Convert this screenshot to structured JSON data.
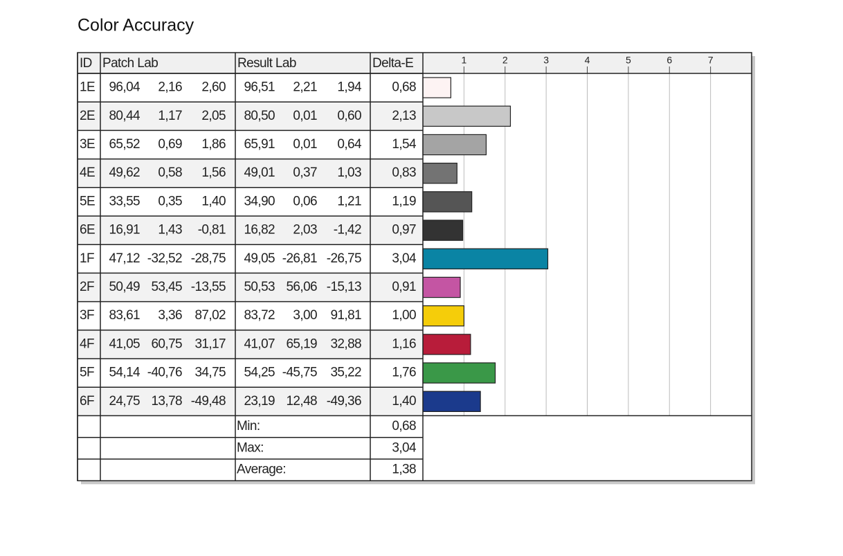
{
  "title": "Color Accuracy",
  "table": {
    "headers": [
      "ID",
      "Patch Lab",
      "Result Lab",
      "Delta-E"
    ],
    "rows": [
      {
        "id": "1E",
        "patch": [
          "96,04",
          "2,16",
          "2,60"
        ],
        "result": [
          "96,51",
          "2,21",
          "1,94"
        ]
      },
      {
        "id": "2E",
        "patch": [
          "80,44",
          "1,17",
          "2,05"
        ],
        "result": [
          "80,50",
          "0,01",
          "0,60"
        ]
      },
      {
        "id": "3E",
        "patch": [
          "65,52",
          "0,69",
          "1,86"
        ],
        "result": [
          "65,91",
          "0,01",
          "0,64"
        ]
      },
      {
        "id": "4E",
        "patch": [
          "49,62",
          "0,58",
          "1,56"
        ],
        "result": [
          "49,01",
          "0,37",
          "1,03"
        ]
      },
      {
        "id": "5E",
        "patch": [
          "33,55",
          "0,35",
          "1,40"
        ],
        "result": [
          "34,90",
          "0,06",
          "1,21"
        ]
      },
      {
        "id": "6E",
        "patch": [
          "16,91",
          "1,43",
          "-0,81"
        ],
        "result": [
          "16,82",
          "2,03",
          "-1,42"
        ]
      },
      {
        "id": "1F",
        "patch": [
          "47,12",
          "-32,52",
          "-28,75"
        ],
        "result": [
          "49,05",
          "-26,81",
          "-26,75"
        ]
      },
      {
        "id": "2F",
        "patch": [
          "50,49",
          "53,45",
          "-13,55"
        ],
        "result": [
          "50,53",
          "56,06",
          "-15,13"
        ]
      },
      {
        "id": "3F",
        "patch": [
          "83,61",
          "3,36",
          "87,02"
        ],
        "result": [
          "83,72",
          "3,00",
          "91,81"
        ]
      },
      {
        "id": "4F",
        "patch": [
          "41,05",
          "60,75",
          "31,17"
        ],
        "result": [
          "41,07",
          "65,19",
          "32,88"
        ]
      },
      {
        "id": "5F",
        "patch": [
          "54,14",
          "-40,76",
          "34,75"
        ],
        "result": [
          "54,25",
          "-45,75",
          "35,22"
        ]
      },
      {
        "id": "6F",
        "patch": [
          "24,75",
          "13,78",
          "-49,48"
        ],
        "result": [
          "23,19",
          "12,48",
          "-49,36"
        ]
      }
    ],
    "summary": [
      {
        "label": "Min:",
        "value": "0,68"
      },
      {
        "label": "Max:",
        "value": "3,04"
      },
      {
        "label": "Average:",
        "value": "1,38"
      }
    ]
  },
  "chart_data": {
    "type": "bar",
    "orientation": "horizontal",
    "values": [
      0.68,
      2.13,
      1.54,
      0.83,
      1.19,
      0.97,
      3.04,
      0.91,
      1.0,
      1.16,
      1.76,
      1.4
    ],
    "value_labels": [
      "0,68",
      "2,13",
      "1,54",
      "0,83",
      "1,19",
      "0,97",
      "3,04",
      "0,91",
      "1,00",
      "1,16",
      "1,76",
      "1,40"
    ],
    "colors": [
      "#fdf3f3",
      "#c8c8c8",
      "#a4a4a4",
      "#737373",
      "#555555",
      "#333333",
      "#0a84a4",
      "#c455a3",
      "#f5cd0a",
      "#b81c3a",
      "#3a9848",
      "#1b3a8c"
    ],
    "xlim": [
      0,
      8
    ],
    "xticks": [
      1,
      2,
      3,
      4,
      5,
      6,
      7
    ],
    "grid": true
  }
}
